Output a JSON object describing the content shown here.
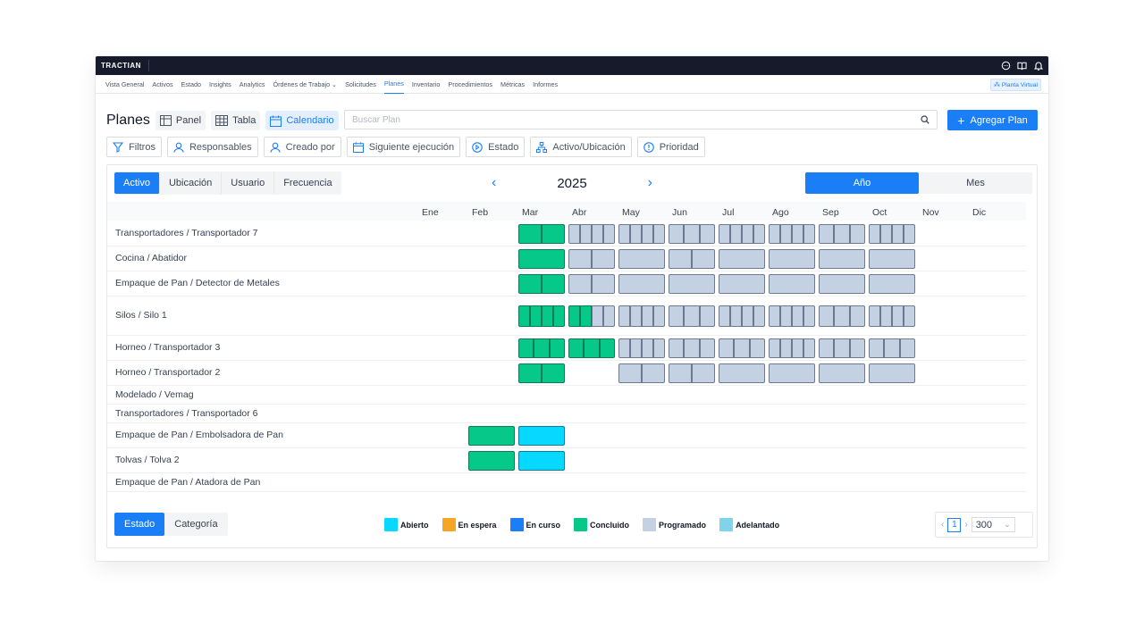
{
  "app": {
    "logo": "TRACTIAN"
  },
  "nav": {
    "items": [
      "Vista General",
      "Activos",
      "Estado",
      "Insights",
      "Analytics",
      "Órdenes de Trabajo ⌄",
      "Solicitudes",
      "Planes",
      "Inventario",
      "Procedimientos",
      "Métricas",
      "Informes"
    ],
    "active": "Planes",
    "virtual_plant": "Planta Virtual"
  },
  "header": {
    "title": "Planes",
    "views": [
      {
        "label": "Panel",
        "icon": "panel-icon"
      },
      {
        "label": "Tabla",
        "icon": "table-icon"
      },
      {
        "label": "Calendario",
        "icon": "calendar-icon",
        "active": true
      }
    ],
    "search_placeholder": "Buscar Plan",
    "add_label": "Agregar Plan"
  },
  "filters": [
    {
      "label": "Filtros",
      "icon": "filter-icon"
    },
    {
      "label": "Responsables",
      "icon": "user-icon"
    },
    {
      "label": "Creado por",
      "icon": "user-icon"
    },
    {
      "label": "Siguiente ejecución",
      "icon": "calendar-icon"
    },
    {
      "label": "Estado",
      "icon": "play-circle-icon"
    },
    {
      "label": "Activo/Ubicación",
      "icon": "hierarchy-icon"
    },
    {
      "label": "Prioridad",
      "icon": "alert-circle-icon"
    }
  ],
  "calendar": {
    "group_tabs": [
      "Activo",
      "Ubicación",
      "Usuario",
      "Frecuencia"
    ],
    "group_active": "Activo",
    "year": "2025",
    "modes": [
      "Año",
      "Mes"
    ],
    "mode_active": "Año",
    "months": [
      "Ene",
      "Feb",
      "Mar",
      "Abr",
      "May",
      "Jun",
      "Jul",
      "Ago",
      "Sep",
      "Oct",
      "Nov",
      "Dic"
    ],
    "rows": [
      {
        "label": "Transportadores / Transportador 7",
        "cells": {
          "4": {
            "s": "done",
            "n": 2
          },
          "5": {
            "s": "prog",
            "n": 4
          },
          "6": {
            "s": "prog",
            "n": 4
          },
          "7": {
            "s": "prog",
            "n": 3
          },
          "8": {
            "s": "prog",
            "n": 4
          },
          "9": {
            "s": "prog",
            "n": 4
          },
          "10": {
            "s": "prog",
            "n": 3
          },
          "11": {
            "s": "prog",
            "n": 4
          }
        }
      },
      {
        "label": "Cocina / Abatidor",
        "cells": {
          "4": {
            "s": "done",
            "n": 1
          },
          "5": {
            "s": "prog",
            "n": 2
          },
          "6": {
            "s": "prog",
            "n": 1
          },
          "7": {
            "s": "prog",
            "n": 2
          },
          "8": {
            "s": "prog",
            "n": 1
          },
          "9": {
            "s": "prog",
            "n": 1
          },
          "10": {
            "s": "prog",
            "n": 1
          },
          "11": {
            "s": "prog",
            "n": 1
          }
        }
      },
      {
        "label": "Empaque de Pan / Detector de Metales",
        "cells": {
          "4": {
            "s": "done",
            "n": 2
          },
          "5": {
            "s": "prog",
            "n": 2
          },
          "6": {
            "s": "prog",
            "n": 1
          },
          "7": {
            "s": "prog",
            "n": 1
          },
          "8": {
            "s": "prog",
            "n": 1
          },
          "9": {
            "s": "prog",
            "n": 1
          },
          "10": {
            "s": "prog",
            "n": 1
          },
          "11": {
            "s": "prog",
            "n": 1
          }
        }
      },
      {
        "label": "Silos / Silo 1",
        "cells": {
          "4": {
            "s": "done",
            "n": 4
          },
          "5": {
            "s": "mixed",
            "n": 4,
            "done": 2
          },
          "6": {
            "s": "prog",
            "n": 4
          },
          "7": {
            "s": "prog",
            "n": 3
          },
          "8": {
            "s": "prog",
            "n": 4
          },
          "9": {
            "s": "prog",
            "n": 4
          },
          "10": {
            "s": "prog",
            "n": 3
          },
          "11": {
            "s": "prog",
            "n": 4
          }
        }
      },
      {
        "label": "Horneo / Transportador 3",
        "cells": {
          "4": {
            "s": "done",
            "n": 3
          },
          "5": {
            "s": "done",
            "n": 3
          },
          "6": {
            "s": "prog",
            "n": 4
          },
          "7": {
            "s": "prog",
            "n": 3
          },
          "8": {
            "s": "prog",
            "n": 3
          },
          "9": {
            "s": "prog",
            "n": 4
          },
          "10": {
            "s": "prog",
            "n": 3
          },
          "11": {
            "s": "prog",
            "n": 3
          }
        }
      },
      {
        "label": "Horneo / Transportador 2",
        "cells": {
          "4": {
            "s": "done",
            "n": 2
          },
          "6": {
            "s": "prog",
            "n": 2
          },
          "7": {
            "s": "prog",
            "n": 2
          },
          "8": {
            "s": "prog",
            "n": 1
          },
          "9": {
            "s": "prog",
            "n": 1
          },
          "10": {
            "s": "prog",
            "n": 1
          },
          "11": {
            "s": "prog",
            "n": 1
          }
        }
      },
      {
        "label": "Modelado / Vemag",
        "cells": {}
      },
      {
        "label": "Transportadores / Transportador 6",
        "cells": {}
      },
      {
        "label": "Empaque de Pan / Embolsadora de Pan",
        "cells": {
          "3": {
            "s": "done",
            "n": 1
          },
          "4": {
            "s": "open",
            "n": 1
          }
        }
      },
      {
        "label": "Tolvas / Tolva 2",
        "cells": {
          "3": {
            "s": "done",
            "n": 1
          },
          "4": {
            "s": "open",
            "n": 1
          }
        }
      },
      {
        "label": "Empaque de Pan / Atadora de Pan",
        "cells": {}
      }
    ]
  },
  "footer": {
    "tabs": [
      "Estado",
      "Categoría"
    ],
    "tab_active": "Estado",
    "legend": [
      {
        "label": "Abierto",
        "color": "#07d8ff"
      },
      {
        "label": "En espera",
        "color": "#f5a623"
      },
      {
        "label": "En curso",
        "color": "#1a7ef7"
      },
      {
        "label": "Concluido",
        "color": "#06c989"
      },
      {
        "label": "Programado",
        "color": "#c3d1e3"
      },
      {
        "label": "Adelantado",
        "color": "#7fd3ea"
      }
    ],
    "page": "1",
    "page_size": "300"
  }
}
